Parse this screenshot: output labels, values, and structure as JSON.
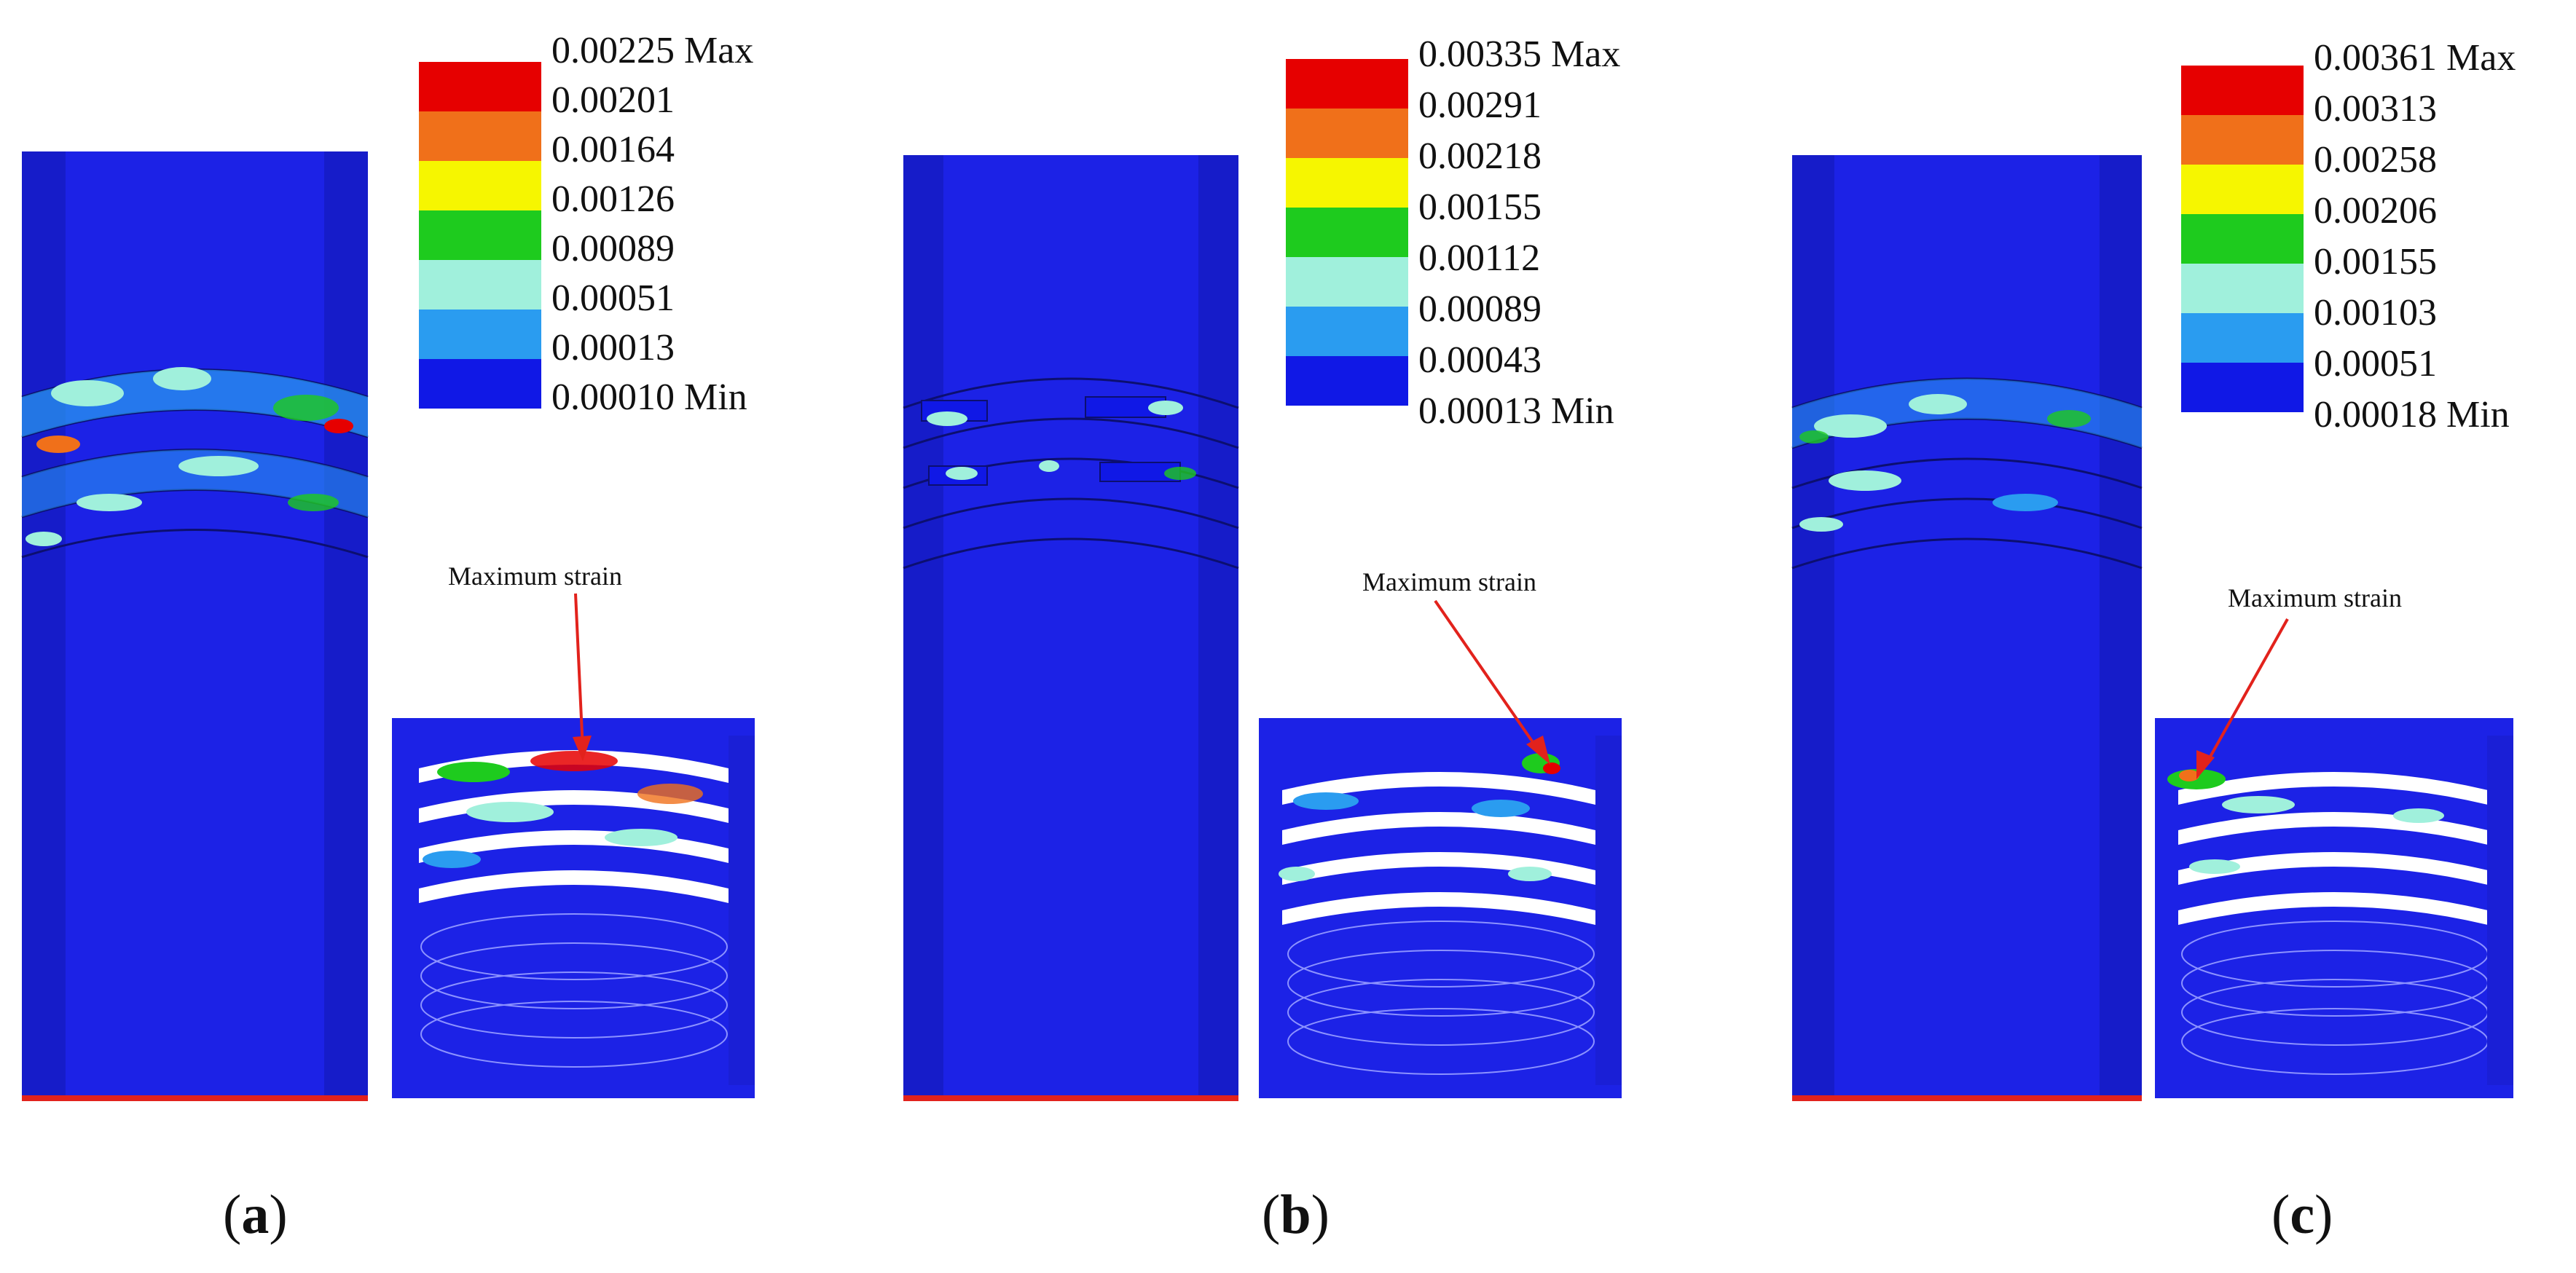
{
  "colors": {
    "background": "#ffffff",
    "model_blue": "#1c22e6",
    "model_blue_dark": "#0f16b8",
    "arrow_red": "#e2221c",
    "legend_colors": [
      "#e60000",
      "#f0701a",
      "#f6f600",
      "#1ecb1e",
      "#a0f0dc",
      "#2a9cf0",
      "#1018e6"
    ]
  },
  "panels": [
    {
      "id": "a",
      "label_letter": "a",
      "legend_values": [
        "0.00225 Max",
        "0.00201",
        "0.00164",
        "0.00126",
        "0.00089",
        "0.00051",
        "0.00013",
        "0.00010 Min"
      ],
      "annotation": "Maximum strain"
    },
    {
      "id": "b",
      "label_letter": "b",
      "legend_values": [
        "0.00335 Max",
        "0.00291",
        "0.00218",
        "0.00155",
        "0.00112",
        "0.00089",
        "0.00043",
        "0.00013 Min"
      ],
      "annotation": "Maximum strain"
    },
    {
      "id": "c",
      "label_letter": "c",
      "legend_values": [
        "0.00361 Max",
        "0.00313",
        "0.00258",
        "0.00206",
        "0.00155",
        "0.00103",
        "0.00051",
        "0.00018 Min"
      ],
      "annotation": "Maximum strain"
    }
  ]
}
